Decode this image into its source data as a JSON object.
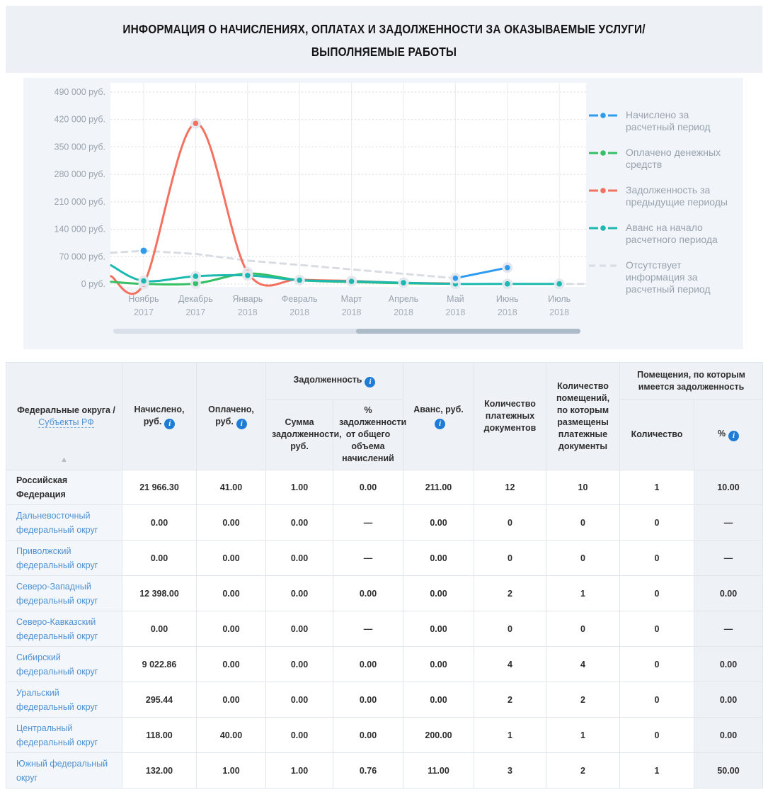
{
  "header": {
    "title_line1": "ИНФОРМАЦИЯ О НАЧИСЛЕНИЯХ, ОПЛАТАХ И ЗАДОЛЖЕННОСТИ ЗА ОКАЗЫВАЕМЫЕ УСЛУГИ/",
    "title_line2": "ВЫПОЛНЯЕМЫЕ РАБОТЫ"
  },
  "chart_data": {
    "type": "line",
    "y_unit": "руб.",
    "ylim": [
      0,
      490000
    ],
    "y_tick_step": 70000,
    "y_tick_labels": [
      "0 руб.",
      "70 000 руб.",
      "140 000 руб.",
      "210 000 руб.",
      "280 000 руб.",
      "350 000 руб.",
      "420 000 руб.",
      "490 000 руб."
    ],
    "categories": [
      {
        "month": "Ноябрь",
        "year": "2017"
      },
      {
        "month": "Декабрь",
        "year": "2017"
      },
      {
        "month": "Январь",
        "year": "2018"
      },
      {
        "month": "Февраль",
        "year": "2018"
      },
      {
        "month": "Март",
        "year": "2018"
      },
      {
        "month": "Апрель",
        "year": "2018"
      },
      {
        "month": "Май",
        "year": "2018"
      },
      {
        "month": "Июнь",
        "year": "2018"
      },
      {
        "month": "Июль",
        "year": "2018"
      }
    ],
    "grid": true,
    "legend_position": "right",
    "draw_order": [
      "no_info",
      "debt",
      "paid",
      "advance",
      "accrued"
    ],
    "series": [
      {
        "id": "accrued",
        "label": "Начислено за расчетный период",
        "color": "#2d9bf0",
        "style": "solid",
        "smooth": false,
        "lines": [
          [
            [
              6,
              15000
            ],
            [
              7,
              42000
            ]
          ]
        ],
        "dots": [
          [
            0,
            85000,
            0
          ],
          [
            6,
            15000,
            1
          ],
          [
            7,
            42000,
            1
          ]
        ]
      },
      {
        "id": "paid",
        "label": "Оплачено денежных средств",
        "color": "#35c065",
        "style": "solid",
        "smooth": true,
        "lines": [
          [
            [
              -0.63,
              6000
            ],
            [
              0,
              500
            ],
            [
              1,
              1500
            ],
            [
              2,
              27000
            ],
            [
              3,
              10000
            ],
            [
              4,
              5500
            ],
            [
              5,
              2000
            ],
            [
              6,
              800
            ]
          ]
        ],
        "dots": [
          [
            1,
            1500,
            1
          ]
        ]
      },
      {
        "id": "debt",
        "label": "Задолженность за предыдущие периоды",
        "color": "#f4705f",
        "style": "solid",
        "smooth": true,
        "lines": [
          [
            [
              -0.63,
              20000
            ],
            [
              0,
              0
            ],
            [
              1,
              410000
            ],
            [
              2,
              30000
            ],
            [
              3,
              12000
            ],
            [
              4,
              8000
            ],
            [
              5,
              3000
            ],
            [
              6,
              1500
            ]
          ]
        ],
        "dots": [
          [
            0,
            0,
            1
          ],
          [
            1,
            410000,
            1
          ],
          [
            2,
            30000,
            1
          ],
          [
            4,
            8000,
            1
          ]
        ]
      },
      {
        "id": "advance",
        "label": "Аванс на начало расчетного периода",
        "color": "#1db9b0",
        "style": "solid",
        "smooth": true,
        "lines": [
          [
            [
              -0.63,
              48000
            ],
            [
              0,
              8000
            ],
            [
              1,
              20000
            ],
            [
              2,
              22000
            ],
            [
              3,
              10000
            ],
            [
              4,
              7000
            ],
            [
              5,
              3500
            ],
            [
              6,
              500
            ],
            [
              7,
              500
            ],
            [
              8,
              500
            ]
          ]
        ],
        "dots": [
          [
            0,
            8000,
            1
          ],
          [
            1,
            20000,
            1
          ],
          [
            2,
            22000,
            1
          ],
          [
            3,
            10000,
            1
          ],
          [
            4,
            7000,
            1
          ],
          [
            5,
            3500,
            1
          ],
          [
            6,
            500,
            1
          ],
          [
            7,
            500,
            1
          ],
          [
            8,
            500,
            1
          ]
        ]
      },
      {
        "id": "no_info",
        "label": "Отсутствует информация за расчетный период",
        "color": "#d9dde3",
        "style": "dashed",
        "smooth": false,
        "lines": [
          [
            [
              -0.63,
              80000
            ],
            [
              0,
              85000
            ],
            [
              1,
              77000
            ],
            [
              2,
              60000
            ],
            [
              6,
              15000
            ]
          ],
          [
            [
              8.15,
              500
            ],
            [
              8.55,
              500
            ]
          ]
        ],
        "dots": []
      }
    ]
  },
  "table": {
    "col_headers": {
      "region": "Федеральные округа /",
      "region_link": "Субъекты РФ",
      "accrued": "Начислено, руб.",
      "paid": "Оплачено, руб.",
      "debt_group": "Задолженность",
      "debt_sum": "Сумма задолженности, руб.",
      "debt_pct": "% задолженности от общего объема начислений",
      "advance": "Аванс, руб.",
      "pay_docs": "Количество платежных документов",
      "premises_docs": "Количество помещений, по которым размещены платежные документы",
      "premises_debt_group": "Помещения, по которым имеется задолженность",
      "premises_debt_count": "Количество",
      "premises_debt_pct": "%"
    },
    "rows": [
      {
        "region": "Российская Федерация",
        "bold": true,
        "cells": [
          "21 966.30",
          "41.00",
          "1.00",
          "0.00",
          "211.00",
          "12",
          "10",
          "1",
          "10.00"
        ]
      },
      {
        "region": "Дальневосточный федеральный округ",
        "bold": false,
        "cells": [
          "0.00",
          "0.00",
          "0.00",
          "—",
          "0.00",
          "0",
          "0",
          "0",
          "—"
        ]
      },
      {
        "region": "Приволжский федеральный округ",
        "bold": false,
        "cells": [
          "0.00",
          "0.00",
          "0.00",
          "—",
          "0.00",
          "0",
          "0",
          "0",
          "—"
        ]
      },
      {
        "region": "Северо-Западный федеральный округ",
        "bold": false,
        "cells": [
          "12 398.00",
          "0.00",
          "0.00",
          "0.00",
          "0.00",
          "2",
          "1",
          "0",
          "0.00"
        ]
      },
      {
        "region": "Северо-Кавказский федеральный округ",
        "bold": false,
        "cells": [
          "0.00",
          "0.00",
          "0.00",
          "—",
          "0.00",
          "0",
          "0",
          "0",
          "—"
        ]
      },
      {
        "region": "Сибирский федеральный округ",
        "bold": false,
        "cells": [
          "9 022.86",
          "0.00",
          "0.00",
          "0.00",
          "0.00",
          "4",
          "4",
          "0",
          "0.00"
        ]
      },
      {
        "region": "Уральский федеральный округ",
        "bold": false,
        "cells": [
          "295.44",
          "0.00",
          "0.00",
          "0.00",
          "0.00",
          "2",
          "2",
          "0",
          "0.00"
        ]
      },
      {
        "region": "Центральный федеральный округ",
        "bold": false,
        "cells": [
          "118.00",
          "40.00",
          "0.00",
          "0.00",
          "200.00",
          "1",
          "1",
          "0",
          "0.00"
        ]
      },
      {
        "region": "Южный федеральный округ",
        "bold": false,
        "cells": [
          "132.00",
          "1.00",
          "1.00",
          "0.76",
          "11.00",
          "3",
          "2",
          "1",
          "50.00"
        ]
      }
    ]
  }
}
